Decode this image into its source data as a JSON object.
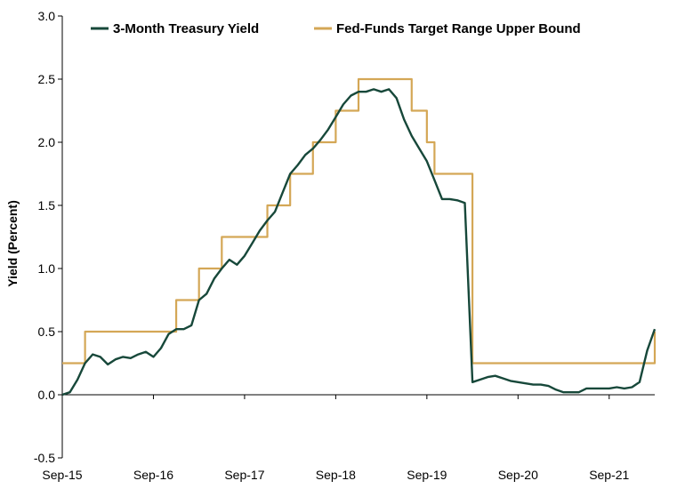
{
  "chart_data": {
    "type": "line",
    "title": "",
    "xlabel": "",
    "ylabel": "Yield (Percent)",
    "ylim": [
      -0.5,
      3.0
    ],
    "yticks": [
      "-0.5",
      "0.0",
      "0.5",
      "1.0",
      "1.5",
      "2.0",
      "2.5",
      "3.0"
    ],
    "ytick_values": [
      -0.5,
      0.0,
      0.5,
      1.0,
      1.5,
      2.0,
      2.5,
      3.0
    ],
    "xlim": [
      "2015-09",
      "2022-03"
    ],
    "xticks": [
      "Sep-15",
      "Sep-16",
      "Sep-17",
      "Sep-18",
      "Sep-19",
      "Sep-20",
      "Sep-21"
    ],
    "xtick_values": [
      "2015-09",
      "2016-09",
      "2017-09",
      "2018-09",
      "2019-09",
      "2020-09",
      "2021-09"
    ],
    "grid": false,
    "legend": "top",
    "series": [
      {
        "name": "3-Month Treasury Yield",
        "color": "#17483a",
        "style": "line",
        "points": [
          [
            "2015-09",
            0.0
          ],
          [
            "2015-10",
            0.02
          ],
          [
            "2015-11",
            0.12
          ],
          [
            "2015-12",
            0.25
          ],
          [
            "2016-01",
            0.32
          ],
          [
            "2016-02",
            0.3
          ],
          [
            "2016-03",
            0.24
          ],
          [
            "2016-04",
            0.28
          ],
          [
            "2016-05",
            0.3
          ],
          [
            "2016-06",
            0.29
          ],
          [
            "2016-07",
            0.32
          ],
          [
            "2016-08",
            0.34
          ],
          [
            "2016-09",
            0.3
          ],
          [
            "2016-10",
            0.37
          ],
          [
            "2016-11",
            0.48
          ],
          [
            "2016-12",
            0.52
          ],
          [
            "2017-01",
            0.52
          ],
          [
            "2017-02",
            0.55
          ],
          [
            "2017-03",
            0.75
          ],
          [
            "2017-04",
            0.8
          ],
          [
            "2017-05",
            0.92
          ],
          [
            "2017-06",
            1.0
          ],
          [
            "2017-07",
            1.07
          ],
          [
            "2017-08",
            1.03
          ],
          [
            "2017-09",
            1.1
          ],
          [
            "2017-10",
            1.2
          ],
          [
            "2017-11",
            1.3
          ],
          [
            "2017-12",
            1.38
          ],
          [
            "2018-01",
            1.45
          ],
          [
            "2018-02",
            1.6
          ],
          [
            "2018-03",
            1.75
          ],
          [
            "2018-04",
            1.82
          ],
          [
            "2018-05",
            1.9
          ],
          [
            "2018-06",
            1.95
          ],
          [
            "2018-07",
            2.02
          ],
          [
            "2018-08",
            2.1
          ],
          [
            "2018-09",
            2.2
          ],
          [
            "2018-10",
            2.3
          ],
          [
            "2018-11",
            2.37
          ],
          [
            "2018-12",
            2.4
          ],
          [
            "2019-01",
            2.4
          ],
          [
            "2019-02",
            2.42
          ],
          [
            "2019-03",
            2.4
          ],
          [
            "2019-04",
            2.42
          ],
          [
            "2019-05",
            2.35
          ],
          [
            "2019-06",
            2.18
          ],
          [
            "2019-07",
            2.05
          ],
          [
            "2019-08",
            1.95
          ],
          [
            "2019-09",
            1.85
          ],
          [
            "2019-10",
            1.7
          ],
          [
            "2019-11",
            1.55
          ],
          [
            "2019-12",
            1.55
          ],
          [
            "2020-01",
            1.54
          ],
          [
            "2020-02",
            1.52
          ],
          [
            "2020-03",
            0.1
          ],
          [
            "2020-04",
            0.12
          ],
          [
            "2020-05",
            0.14
          ],
          [
            "2020-06",
            0.15
          ],
          [
            "2020-07",
            0.13
          ],
          [
            "2020-08",
            0.11
          ],
          [
            "2020-09",
            0.1
          ],
          [
            "2020-10",
            0.09
          ],
          [
            "2020-11",
            0.08
          ],
          [
            "2020-12",
            0.08
          ],
          [
            "2021-01",
            0.07
          ],
          [
            "2021-02",
            0.04
          ],
          [
            "2021-03",
            0.02
          ],
          [
            "2021-04",
            0.02
          ],
          [
            "2021-05",
            0.02
          ],
          [
            "2021-06",
            0.05
          ],
          [
            "2021-07",
            0.05
          ],
          [
            "2021-08",
            0.05
          ],
          [
            "2021-09",
            0.05
          ],
          [
            "2021-10",
            0.06
          ],
          [
            "2021-11",
            0.05
          ],
          [
            "2021-12",
            0.06
          ],
          [
            "2022-01",
            0.1
          ],
          [
            "2022-02",
            0.35
          ],
          [
            "2022-03",
            0.52
          ]
        ]
      },
      {
        "name": "Fed-Funds Target Range Upper Bound",
        "color": "#d4a756",
        "style": "step",
        "points": [
          [
            "2015-09",
            0.25
          ],
          [
            "2015-12",
            0.5
          ],
          [
            "2016-12",
            0.75
          ],
          [
            "2017-03",
            1.0
          ],
          [
            "2017-06",
            1.25
          ],
          [
            "2017-12",
            1.5
          ],
          [
            "2018-03",
            1.75
          ],
          [
            "2018-06",
            2.0
          ],
          [
            "2018-09",
            2.25
          ],
          [
            "2018-12",
            2.5
          ],
          [
            "2019-07",
            2.25
          ],
          [
            "2019-09",
            2.0
          ],
          [
            "2019-10",
            1.75
          ],
          [
            "2020-03",
            1.25
          ],
          [
            "2020-03",
            0.25
          ],
          [
            "2022-03",
            0.25
          ],
          [
            "2022-03",
            0.5
          ]
        ]
      }
    ]
  }
}
